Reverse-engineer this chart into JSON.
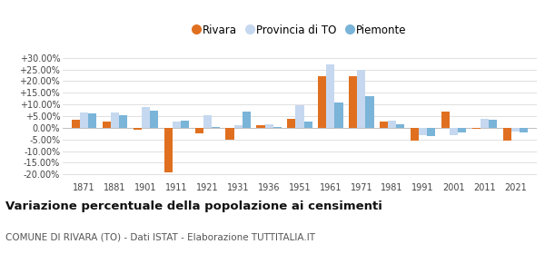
{
  "years": [
    1871,
    1881,
    1901,
    1911,
    1921,
    1931,
    1936,
    1951,
    1961,
    1971,
    1981,
    1991,
    2001,
    2011,
    2021
  ],
  "rivara": [
    3.5,
    2.5,
    -1.0,
    -19.0,
    -2.5,
    -5.0,
    1.2,
    4.0,
    22.0,
    22.0,
    2.5,
    -5.5,
    7.0,
    -0.5,
    -5.5
  ],
  "provincia": [
    6.5,
    6.5,
    9.0,
    2.5,
    5.5,
    1.0,
    1.5,
    9.5,
    27.0,
    25.0,
    3.0,
    -3.0,
    -3.0,
    4.0,
    -1.5
  ],
  "piemonte": [
    6.2,
    5.5,
    7.5,
    3.0,
    0.5,
    7.0,
    0.5,
    2.8,
    11.0,
    13.5,
    1.5,
    -3.5,
    -2.0,
    3.5,
    -2.0
  ],
  "rivara_color": "#e07020",
  "provincia_color": "#c5d8f0",
  "piemonte_color": "#7ab4d8",
  "bg_color": "#ffffff",
  "grid_color": "#e0e0e0",
  "title": "Variazione percentuale della popolazione ai censimenti",
  "subtitle": "COMUNE DI RIVARA (TO) - Dati ISTAT - Elaborazione TUTTITALIA.IT",
  "yticks": [
    -20,
    -15,
    -10,
    -5,
    0,
    5,
    10,
    15,
    20,
    25,
    30
  ],
  "ylim": [
    -22,
    33
  ],
  "bar_width": 0.27
}
